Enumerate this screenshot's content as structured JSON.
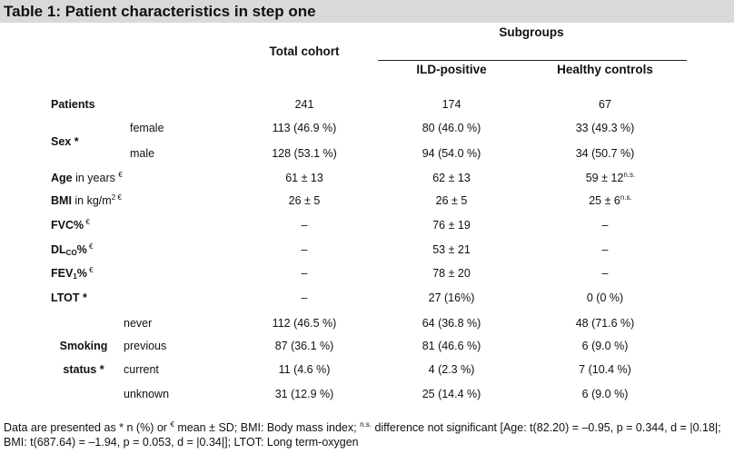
{
  "title": "Table 1: Patient characteristics in step one",
  "headers": {
    "subgroups": "Subgroups",
    "total": "Total cohort",
    "ild": "ILD-positive",
    "healthy": "Healthy controls"
  },
  "rows": {
    "patients": {
      "label": "Patients",
      "total": "241",
      "ild": "174",
      "healthy": "67"
    },
    "sex": {
      "label": "Sex *"
    },
    "female": {
      "label": "female",
      "total": "113 (46.9 %)",
      "ild": "80 (46.0 %)",
      "healthy": "33 (49.3 %)"
    },
    "male": {
      "label": "male",
      "total": "128 (53.1 %)",
      "ild": "94 (54.0 %)",
      "healthy": "34 (50.7 %)"
    },
    "age": {
      "label": "Age",
      "unit": " in years",
      "mark": "€",
      "total": "61 ± 13",
      "ild": "62 ± 13",
      "healthy": "59 ± 12",
      "healthy_sup": "n.s."
    },
    "bmi": {
      "label": "BMI",
      "unit": " in kg/m",
      "unit_sup": "2",
      "mark": " €",
      "total": "26 ± 5",
      "ild": "26 ± 5",
      "healthy": "25 ± 6",
      "healthy_sup": "n.s."
    },
    "fvc": {
      "label": "FVC%",
      "mark": " €",
      "total": "–",
      "ild": "76 ± 19",
      "healthy": "–"
    },
    "dlco": {
      "label": "DL",
      "sub": "CO",
      "label_suffix": "%",
      "mark": " €",
      "total": "–",
      "ild": "53 ± 21",
      "healthy": "–"
    },
    "fev": {
      "label": "FEV",
      "sub": "1",
      "label_suffix": "%",
      "mark": " €",
      "total": "–",
      "ild": "78 ± 20",
      "healthy": "–"
    },
    "ltot": {
      "label": "LTOT *",
      "total": "–",
      "ild": "27 (16%)",
      "healthy": "0 (0 %)"
    },
    "smoking": {
      "label_line1": "Smoking",
      "label_line2": "status *"
    },
    "never": {
      "label": "never",
      "total": "112 (46.5 %)",
      "ild": "64 (36.8 %)",
      "healthy": "48 (71.6 %)"
    },
    "previous": {
      "label": "previous",
      "total": "87 (36.1 %)",
      "ild": "81 (46.6 %)",
      "healthy": "6 (9.0 %)"
    },
    "current": {
      "label": "current",
      "total": "11 (4.6 %)",
      "ild": "4 (2.3 %)",
      "healthy": "7 (10.4 %)"
    },
    "unknown": {
      "label": "unknown",
      "total": "31 (12.9 %)",
      "ild": "25 (14.4 %)",
      "healthy": "6 (9.0 %)"
    }
  },
  "footnote": {
    "p1": "Data are presented as * n (%) or ",
    "euro": "€",
    "p2": " mean ± SD; BMI: Body mass index; ",
    "ns": "n.s.",
    "p3": " difference not significant [Age: t(82.20) = –0.95, p = 0.344, d = |0.18|; BMI: t(687.64) = –1.94, p = 0.053, d = |0.34|]; LTOT: Long term-oxygen"
  }
}
